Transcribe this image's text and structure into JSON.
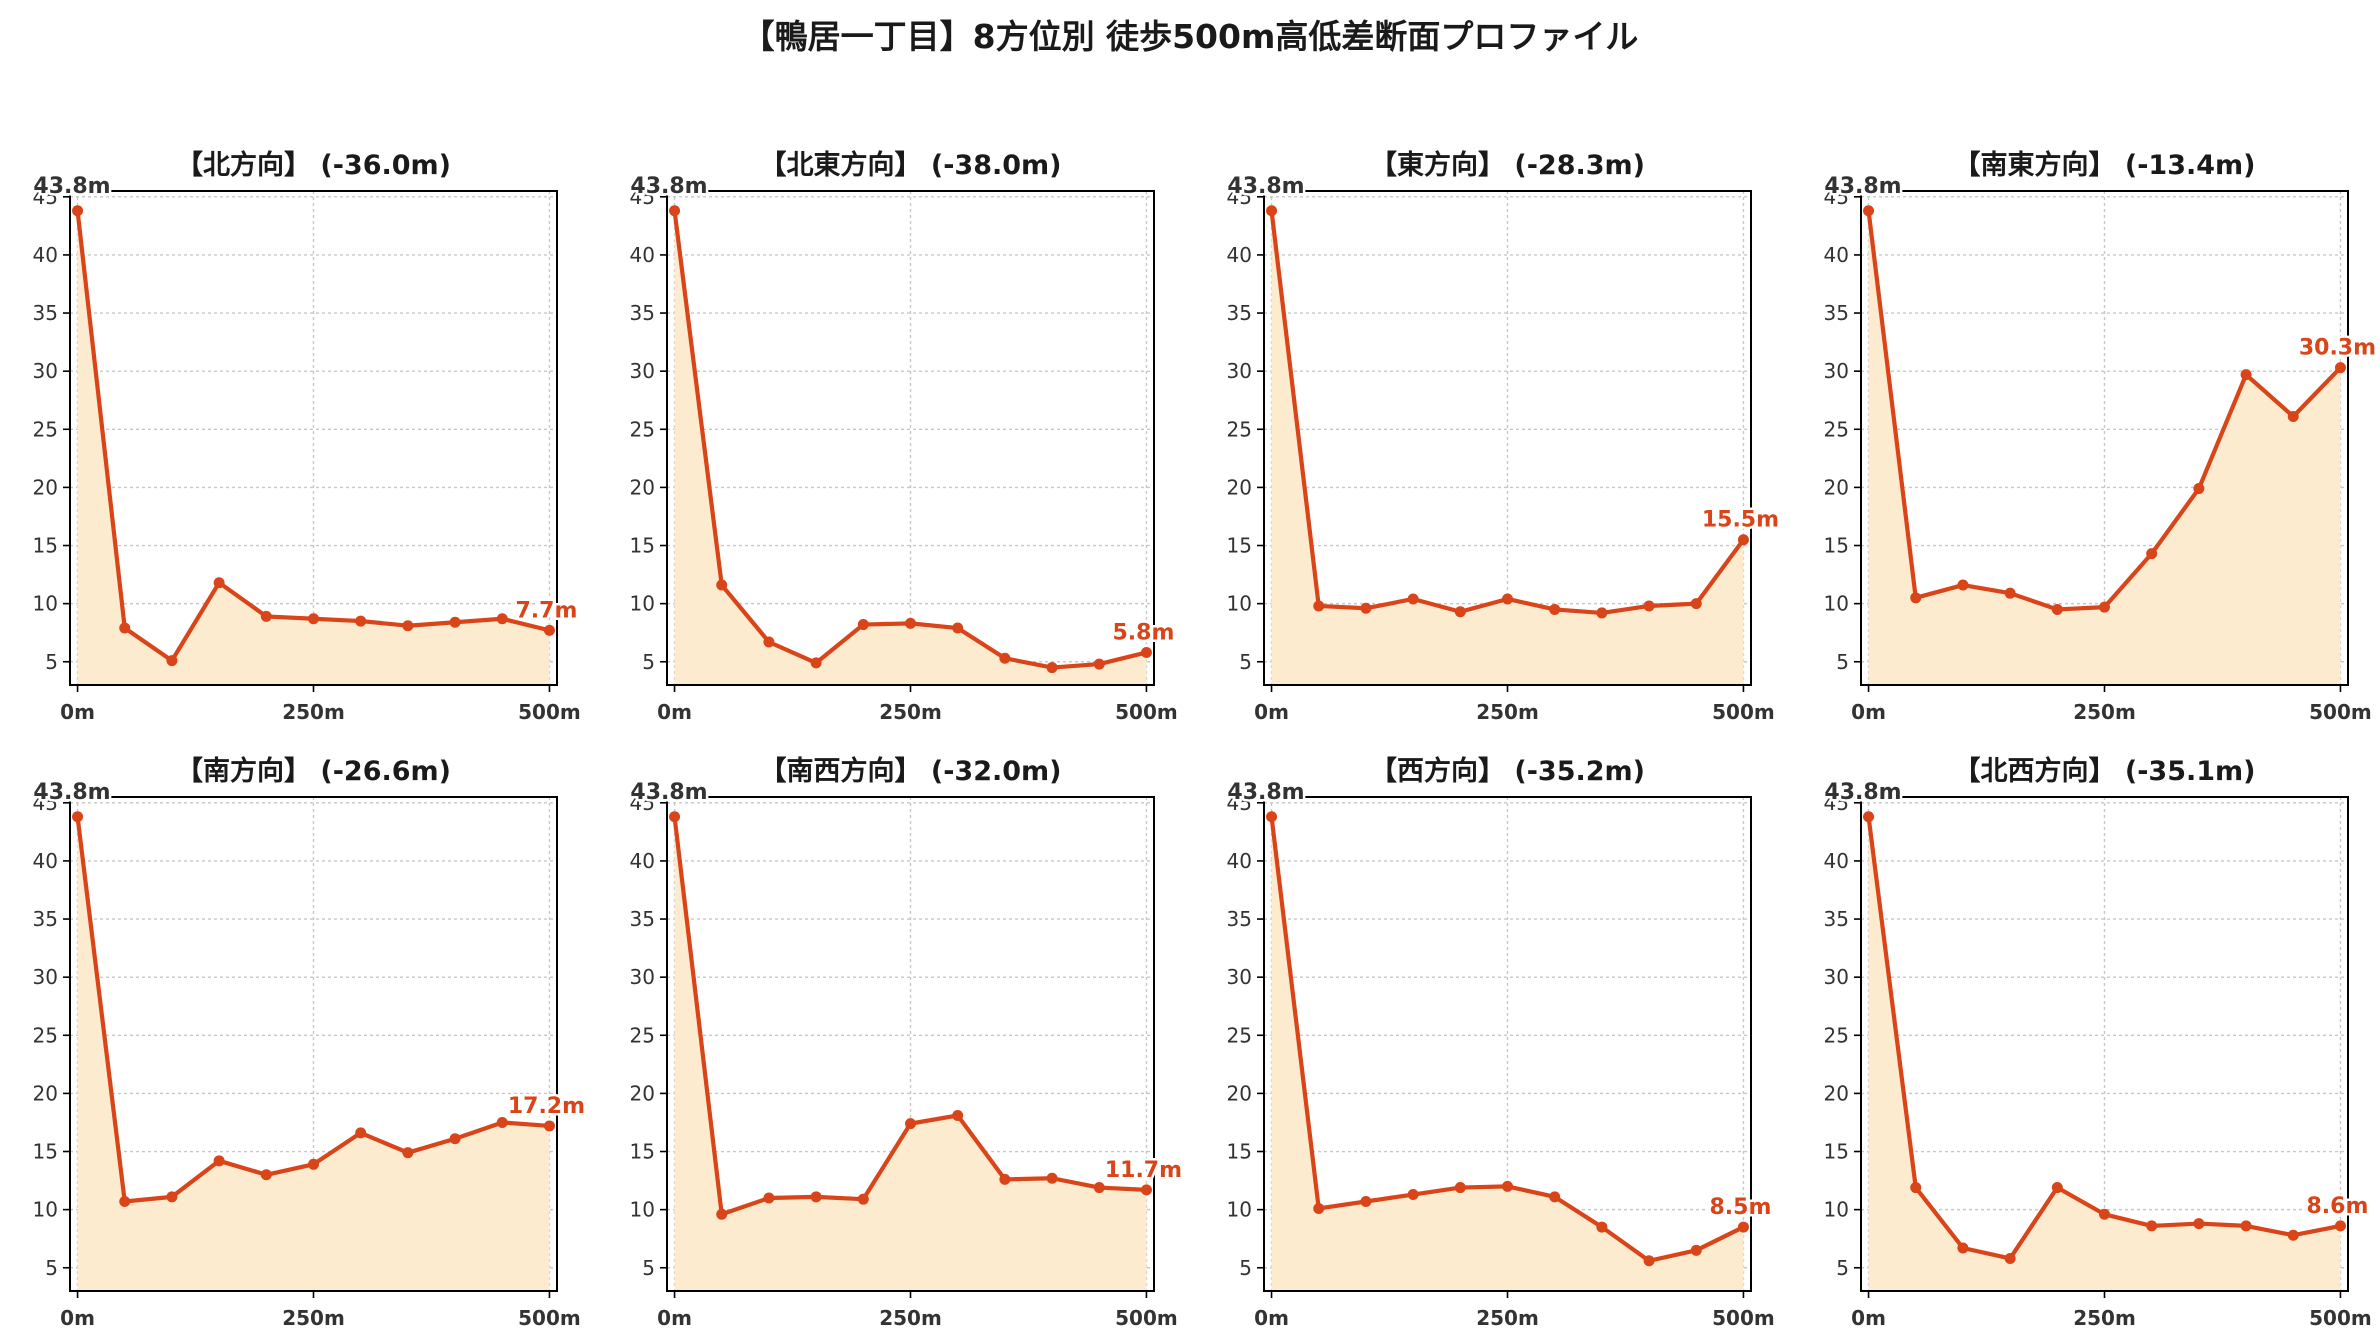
{
  "title": "【鴨居一丁目】8方位別 徒歩500m高低差断面プロファイル",
  "colors": {
    "line": "#d94418",
    "fill": "#fdebd0",
    "axis": "#000000",
    "grid": "#c8c8c8",
    "label": "#333333"
  },
  "chart_data": [
    {
      "type": "area",
      "title": "【北方向】 (-36.0m)",
      "x": [
        0,
        50,
        100,
        150,
        200,
        250,
        300,
        350,
        400,
        450,
        500
      ],
      "values": [
        43.8,
        7.9,
        5.1,
        11.8,
        8.9,
        8.7,
        8.5,
        8.1,
        8.4,
        8.7,
        7.7
      ],
      "start_label": "43.8m",
      "end_label": "7.7m",
      "xticks": [
        0,
        250,
        500
      ],
      "xtick_labels": [
        "0m",
        "250m",
        "500m"
      ],
      "yticks": [
        5,
        10,
        15,
        20,
        25,
        30,
        35,
        40,
        45
      ],
      "ylim": [
        3,
        45.5
      ],
      "xlim": [
        -8,
        508
      ],
      "grid": true
    },
    {
      "type": "area",
      "title": "【北東方向】 (-38.0m)",
      "x": [
        0,
        50,
        100,
        150,
        200,
        250,
        300,
        350,
        400,
        450,
        500
      ],
      "values": [
        43.8,
        11.6,
        6.7,
        4.9,
        8.2,
        8.3,
        7.9,
        5.3,
        4.5,
        4.8,
        5.8
      ],
      "start_label": "43.8m",
      "end_label": "5.8m",
      "xticks": [
        0,
        250,
        500
      ],
      "xtick_labels": [
        "0m",
        "250m",
        "500m"
      ],
      "yticks": [
        5,
        10,
        15,
        20,
        25,
        30,
        35,
        40,
        45
      ],
      "ylim": [
        3,
        45.5
      ],
      "xlim": [
        -8,
        508
      ],
      "grid": true
    },
    {
      "type": "area",
      "title": "【東方向】 (-28.3m)",
      "x": [
        0,
        50,
        100,
        150,
        200,
        250,
        300,
        350,
        400,
        450,
        500
      ],
      "values": [
        43.8,
        9.8,
        9.6,
        10.4,
        9.3,
        10.4,
        9.5,
        9.2,
        9.8,
        10.0,
        15.5
      ],
      "start_label": "43.8m",
      "end_label": "15.5m",
      "xticks": [
        0,
        250,
        500
      ],
      "xtick_labels": [
        "0m",
        "250m",
        "500m"
      ],
      "yticks": [
        5,
        10,
        15,
        20,
        25,
        30,
        35,
        40,
        45
      ],
      "ylim": [
        3,
        45.5
      ],
      "xlim": [
        -8,
        508
      ],
      "grid": true
    },
    {
      "type": "area",
      "title": "【南東方向】 (-13.4m)",
      "x": [
        0,
        50,
        100,
        150,
        200,
        250,
        300,
        350,
        400,
        450,
        500
      ],
      "values": [
        43.8,
        10.5,
        11.6,
        10.9,
        9.5,
        9.7,
        14.3,
        19.9,
        29.7,
        26.1,
        30.3
      ],
      "start_label": "43.8m",
      "end_label": "30.3m",
      "xticks": [
        0,
        250,
        500
      ],
      "xtick_labels": [
        "0m",
        "250m",
        "500m"
      ],
      "yticks": [
        5,
        10,
        15,
        20,
        25,
        30,
        35,
        40,
        45
      ],
      "ylim": [
        3,
        45.5
      ],
      "xlim": [
        -8,
        508
      ],
      "grid": true
    },
    {
      "type": "area",
      "title": "【南方向】 (-26.6m)",
      "x": [
        0,
        50,
        100,
        150,
        200,
        250,
        300,
        350,
        400,
        450,
        500
      ],
      "values": [
        43.8,
        10.7,
        11.1,
        14.2,
        13.0,
        13.9,
        16.6,
        14.9,
        16.1,
        17.5,
        17.2
      ],
      "start_label": "43.8m",
      "end_label": "17.2m",
      "xticks": [
        0,
        250,
        500
      ],
      "xtick_labels": [
        "0m",
        "250m",
        "500m"
      ],
      "yticks": [
        5,
        10,
        15,
        20,
        25,
        30,
        35,
        40,
        45
      ],
      "ylim": [
        3,
        45.5
      ],
      "xlim": [
        -8,
        508
      ],
      "grid": true
    },
    {
      "type": "area",
      "title": "【南西方向】 (-32.0m)",
      "x": [
        0,
        50,
        100,
        150,
        200,
        250,
        300,
        350,
        400,
        450,
        500
      ],
      "values": [
        43.8,
        9.6,
        11.0,
        11.1,
        10.9,
        17.4,
        18.1,
        12.6,
        12.7,
        11.9,
        11.7
      ],
      "start_label": "43.8m",
      "end_label": "11.7m",
      "xticks": [
        0,
        250,
        500
      ],
      "xtick_labels": [
        "0m",
        "250m",
        "500m"
      ],
      "yticks": [
        5,
        10,
        15,
        20,
        25,
        30,
        35,
        40,
        45
      ],
      "ylim": [
        3,
        45.5
      ],
      "xlim": [
        -8,
        508
      ],
      "grid": true
    },
    {
      "type": "area",
      "title": "【西方向】 (-35.2m)",
      "x": [
        0,
        50,
        100,
        150,
        200,
        250,
        300,
        350,
        400,
        450,
        500
      ],
      "values": [
        43.8,
        10.1,
        10.7,
        11.3,
        11.9,
        12.0,
        11.1,
        8.5,
        5.6,
        6.5,
        8.5
      ],
      "start_label": "43.8m",
      "end_label": "8.5m",
      "xticks": [
        0,
        250,
        500
      ],
      "xtick_labels": [
        "0m",
        "250m",
        "500m"
      ],
      "yticks": [
        5,
        10,
        15,
        20,
        25,
        30,
        35,
        40,
        45
      ],
      "ylim": [
        3,
        45.5
      ],
      "xlim": [
        -8,
        508
      ],
      "grid": true
    },
    {
      "type": "area",
      "title": "【北西方向】 (-35.1m)",
      "x": [
        0,
        50,
        100,
        150,
        200,
        250,
        300,
        350,
        400,
        450,
        500
      ],
      "values": [
        43.8,
        11.9,
        6.7,
        5.8,
        11.9,
        9.6,
        8.6,
        8.8,
        8.6,
        7.8,
        8.6
      ],
      "start_label": "43.8m",
      "end_label": "8.6m",
      "xticks": [
        0,
        250,
        500
      ],
      "xtick_labels": [
        "0m",
        "250m",
        "500m"
      ],
      "yticks": [
        5,
        10,
        15,
        20,
        25,
        30,
        35,
        40,
        45
      ],
      "ylim": [
        3,
        45.5
      ],
      "xlim": [
        -8,
        508
      ],
      "grid": true
    }
  ]
}
